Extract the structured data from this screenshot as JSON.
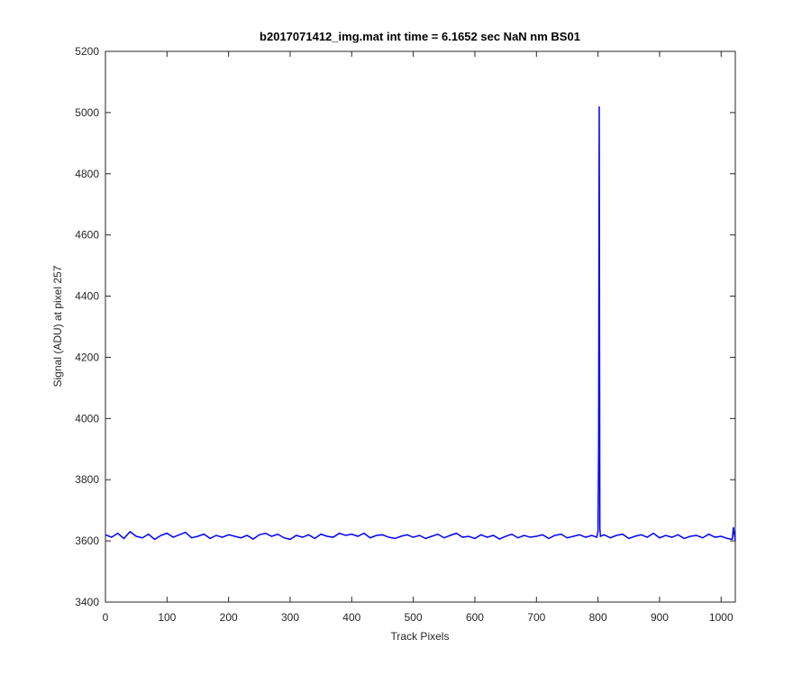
{
  "chart_data": {
    "type": "line",
    "title": "b2017071412_img.mat int time = 6.1652 sec  NaN nm BS01",
    "xlabel": "Track Pixels",
    "ylabel": "Signal (ADU) at pixel 257",
    "color": "#0000ff",
    "x": [
      0,
      10,
      20,
      30,
      40,
      50,
      60,
      70,
      80,
      90,
      100,
      110,
      120,
      130,
      140,
      150,
      160,
      170,
      180,
      190,
      200,
      210,
      220,
      230,
      240,
      250,
      260,
      270,
      280,
      290,
      300,
      310,
      320,
      330,
      340,
      350,
      360,
      370,
      380,
      390,
      400,
      410,
      420,
      430,
      440,
      450,
      460,
      470,
      480,
      490,
      500,
      510,
      520,
      530,
      540,
      550,
      560,
      570,
      580,
      590,
      600,
      610,
      620,
      630,
      640,
      650,
      660,
      670,
      680,
      690,
      700,
      710,
      720,
      730,
      740,
      750,
      760,
      770,
      780,
      790,
      798,
      800,
      801,
      802,
      803,
      804,
      810,
      820,
      830,
      840,
      850,
      860,
      870,
      880,
      890,
      900,
      910,
      920,
      930,
      940,
      950,
      960,
      970,
      980,
      990,
      1000,
      1010,
      1018,
      1020,
      1023
    ],
    "values": [
      3620,
      3612,
      3625,
      3608,
      3630,
      3615,
      3610,
      3622,
      3605,
      3618,
      3625,
      3612,
      3620,
      3628,
      3610,
      3615,
      3622,
      3608,
      3618,
      3612,
      3620,
      3615,
      3610,
      3618,
      3606,
      3620,
      3625,
      3615,
      3622,
      3610,
      3605,
      3618,
      3612,
      3620,
      3608,
      3622,
      3615,
      3612,
      3625,
      3618,
      3622,
      3615,
      3625,
      3610,
      3618,
      3620,
      3612,
      3608,
      3615,
      3620,
      3612,
      3618,
      3608,
      3615,
      3622,
      3610,
      3618,
      3625,
      3612,
      3615,
      3608,
      3620,
      3612,
      3618,
      3606,
      3615,
      3622,
      3610,
      3618,
      3612,
      3615,
      3620,
      3608,
      3618,
      3622,
      3610,
      3615,
      3620,
      3612,
      3618,
      3612,
      3630,
      3900,
      5020,
      3640,
      3615,
      3620,
      3610,
      3618,
      3622,
      3608,
      3615,
      3620,
      3612,
      3625,
      3610,
      3618,
      3612,
      3620,
      3608,
      3615,
      3618,
      3610,
      3622,
      3612,
      3615,
      3608,
      3605,
      3645,
      3600
    ],
    "xlim": [
      0,
      1023
    ],
    "ylim": [
      3400,
      5200
    ],
    "xticks": [
      0,
      100,
      200,
      300,
      400,
      500,
      600,
      700,
      800,
      900,
      1000
    ],
    "yticks": [
      3400,
      3600,
      3800,
      4000,
      4200,
      4400,
      4600,
      4800,
      5000,
      5200
    ]
  }
}
